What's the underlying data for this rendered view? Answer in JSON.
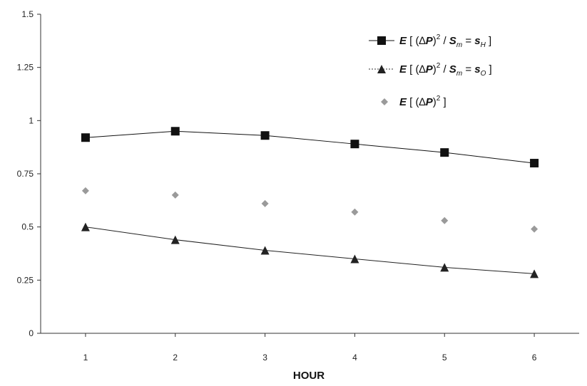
{
  "chart_data": {
    "type": "line",
    "title": "",
    "xlabel": "HOUR",
    "ylabel": "",
    "x": [
      1,
      2,
      3,
      4,
      5,
      6
    ],
    "xlim": [
      0.5,
      6.5
    ],
    "ylim": [
      0,
      1.5
    ],
    "y_ticks": [
      "0",
      "0.25",
      "0.5",
      "0.75",
      "1",
      "1.25",
      "1.5"
    ],
    "x_ticks": [
      "1",
      "2",
      "3",
      "4",
      "5",
      "6"
    ],
    "legend_position": "top-right",
    "grid": false,
    "series": [
      {
        "name": "E [ (ΔP)² / Sm = sH ]",
        "values": [
          0.92,
          0.95,
          0.93,
          0.89,
          0.85,
          0.8
        ],
        "marker": "square",
        "line": true,
        "color": "#111111"
      },
      {
        "name": "E [ (ΔP)² / Sm = sO ]",
        "values": [
          0.5,
          0.44,
          0.39,
          0.35,
          0.31,
          0.28
        ],
        "marker": "triangle",
        "line": true,
        "color": "#222222"
      },
      {
        "name": "E [ (ΔP)² ]",
        "values": [
          0.67,
          0.65,
          0.61,
          0.57,
          0.53,
          0.49
        ],
        "marker": "diamond",
        "line": false,
        "color": "#9a9a9a"
      }
    ]
  }
}
